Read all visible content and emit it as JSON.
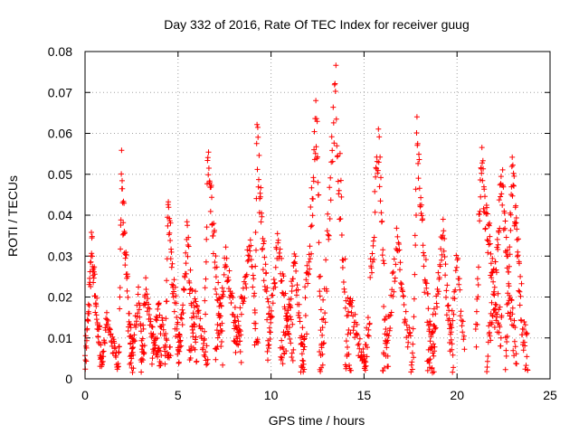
{
  "chart_data": {
    "type": "scatter",
    "title": "Day 332 of 2016, Rate Of TEC Index for receiver guug",
    "xlabel": "GPS time / hours",
    "ylabel": "ROTI / TECUs",
    "xlim": [
      0,
      25
    ],
    "ylim": [
      0,
      0.08
    ],
    "xticks": [
      "0",
      "5",
      "10",
      "15",
      "20",
      "25"
    ],
    "yticks": [
      "0",
      "0.01",
      "0.02",
      "0.03",
      "0.04",
      "0.05",
      "0.06",
      "0.07",
      "0.08"
    ],
    "grid": true,
    "marker": "plus",
    "color": "#ff0000",
    "arcs": [
      {
        "t0": 0.0,
        "t1": 0.9,
        "lo": 0.005,
        "hi": 0.033,
        "peak": 0.4,
        "n": 70
      },
      {
        "t0": 0.9,
        "t1": 1.8,
        "lo": 0.004,
        "hi": 0.015,
        "peak": 0.3,
        "n": 45
      },
      {
        "t0": 1.8,
        "t1": 2.6,
        "lo": 0.004,
        "hi": 0.05,
        "peak": 0.2,
        "n": 55
      },
      {
        "t0": 2.4,
        "t1": 3.2,
        "lo": 0.005,
        "hi": 0.02,
        "peak": 0.6,
        "n": 40
      },
      {
        "t0": 3.0,
        "t1": 4.1,
        "lo": 0.004,
        "hi": 0.022,
        "peak": 0.2,
        "n": 55
      },
      {
        "t0": 3.6,
        "t1": 4.6,
        "lo": 0.005,
        "hi": 0.018,
        "peak": 0.3,
        "n": 40
      },
      {
        "t0": 4.3,
        "t1": 5.1,
        "lo": 0.006,
        "hi": 0.044,
        "peak": 0.2,
        "n": 50
      },
      {
        "t0": 5.0,
        "t1": 6.0,
        "lo": 0.006,
        "hi": 0.035,
        "peak": 0.5,
        "n": 55
      },
      {
        "t0": 5.6,
        "t1": 6.6,
        "lo": 0.005,
        "hi": 0.02,
        "peak": 0.3,
        "n": 40
      },
      {
        "t0": 6.4,
        "t1": 7.4,
        "lo": 0.008,
        "hi": 0.058,
        "peak": 0.2,
        "n": 55
      },
      {
        "t0": 7.0,
        "t1": 8.4,
        "lo": 0.008,
        "hi": 0.03,
        "peak": 0.4,
        "n": 60
      },
      {
        "t0": 8.0,
        "t1": 9.3,
        "lo": 0.009,
        "hi": 0.035,
        "peak": 0.7,
        "n": 55
      },
      {
        "t0": 9.1,
        "t1": 10.0,
        "lo": 0.01,
        "hi": 0.06,
        "peak": 0.15,
        "n": 50
      },
      {
        "t0": 9.8,
        "t1": 11.2,
        "lo": 0.008,
        "hi": 0.035,
        "peak": 0.4,
        "n": 60
      },
      {
        "t0": 10.5,
        "t1": 11.8,
        "lo": 0.004,
        "hi": 0.03,
        "peak": 0.6,
        "n": 60
      },
      {
        "t0": 11.6,
        "t1": 12.8,
        "lo": 0.004,
        "hi": 0.065,
        "peak": 0.7,
        "n": 65
      },
      {
        "t0": 12.6,
        "t1": 14.3,
        "lo": 0.005,
        "hi": 0.072,
        "peak": 0.5,
        "n": 70
      },
      {
        "t0": 14.0,
        "t1": 15.1,
        "lo": 0.003,
        "hi": 0.02,
        "peak": 0.2,
        "n": 45
      },
      {
        "t0": 15.0,
        "t1": 16.3,
        "lo": 0.004,
        "hi": 0.061,
        "peak": 0.6,
        "n": 60
      },
      {
        "t0": 16.0,
        "t1": 17.6,
        "lo": 0.004,
        "hi": 0.035,
        "peak": 0.5,
        "n": 65
      },
      {
        "t0": 17.6,
        "t1": 18.8,
        "lo": 0.003,
        "hi": 0.06,
        "peak": 0.2,
        "n": 60
      },
      {
        "t0": 18.4,
        "t1": 19.8,
        "lo": 0.004,
        "hi": 0.036,
        "peak": 0.6,
        "n": 65
      },
      {
        "t0": 19.6,
        "t1": 20.4,
        "lo": 0.01,
        "hi": 0.03,
        "peak": 0.5,
        "n": 30
      },
      {
        "t0": 21.0,
        "t1": 22.4,
        "lo": 0.01,
        "hi": 0.055,
        "peak": 0.2,
        "n": 80
      },
      {
        "t0": 21.6,
        "t1": 23.2,
        "lo": 0.006,
        "hi": 0.05,
        "peak": 0.5,
        "n": 80
      },
      {
        "t0": 22.6,
        "t1": 23.8,
        "lo": 0.004,
        "hi": 0.053,
        "peak": 0.3,
        "n": 70
      }
    ]
  }
}
